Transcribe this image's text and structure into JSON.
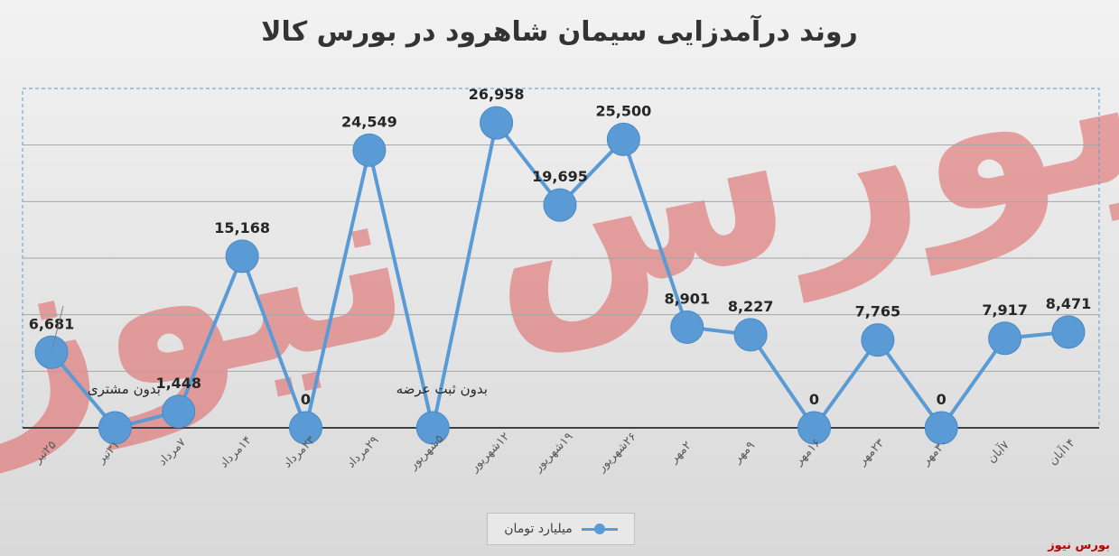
{
  "title": "روند درآمدزایی سیمان شاهرود در بورس کالا",
  "brand": "بورس نیوز",
  "watermark": "بورس نیوز",
  "legend": {
    "series_name": "میلیارد تومان"
  },
  "colors": {
    "series": "#5b9bd5",
    "watermark": "#e06060",
    "axis": "#404040"
  },
  "chart_data": {
    "type": "line",
    "categories": [
      "۲۵تیر",
      "۳۱تیر",
      "۷مرداد",
      "۱۴مرداد",
      "۲۳مرداد",
      "۲۹مرداد",
      "۵شهریور",
      "۱۲شهریور",
      "۱۹شهریور",
      "۲۶شهریور",
      "۲مهر",
      "۹مهر",
      "۱۶مهر",
      "۲۳مهر",
      "۳۰مهر",
      "۷آبان",
      "۱۴آبان"
    ],
    "series": [
      {
        "name": "میلیارد تومان",
        "values": [
          6681,
          0,
          1448,
          15168,
          0,
          24549,
          0,
          26958,
          19695,
          25500,
          8901,
          8227,
          0,
          7765,
          0,
          7917,
          8471
        ]
      }
    ],
    "data_labels": [
      "6,681",
      "",
      "1,448",
      "15,168",
      "0",
      "24,549",
      "",
      "26,958",
      "19,695",
      "25,500",
      "8,901",
      "8,227",
      "0",
      "7,765",
      "0",
      "7,917",
      "8,471"
    ],
    "annotations": [
      {
        "category": "۳۱تیر",
        "text": "بدون مشتری"
      },
      {
        "category": "۵شهریور",
        "text": "بدون ثبت عرضه"
      }
    ],
    "ylim": [
      0,
      30000
    ],
    "grid": true,
    "legend_position": "bottom"
  }
}
